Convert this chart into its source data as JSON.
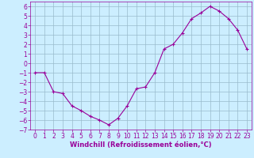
{
  "x": [
    0,
    1,
    2,
    3,
    4,
    5,
    6,
    7,
    8,
    9,
    10,
    11,
    12,
    13,
    14,
    15,
    16,
    17,
    18,
    19,
    20,
    21,
    22,
    23
  ],
  "y": [
    -1.0,
    -1.0,
    -3.0,
    -3.2,
    -4.5,
    -5.0,
    -5.6,
    -6.0,
    -6.5,
    -5.8,
    -4.5,
    -2.7,
    -2.5,
    -1.0,
    1.5,
    2.0,
    3.2,
    4.7,
    5.3,
    6.0,
    5.5,
    4.7,
    3.5,
    1.5
  ],
  "line_color": "#990099",
  "marker": "+",
  "marker_size": 3,
  "bg_color": "#cceeff",
  "grid_color": "#99bbcc",
  "xlabel": "Windchill (Refroidissement éolien,°C)",
  "xlabel_color": "#990099",
  "tick_color": "#990099",
  "ylim": [
    -7,
    6.5
  ],
  "xlim": [
    -0.5,
    23.5
  ],
  "yticks": [
    -7,
    -6,
    -5,
    -4,
    -3,
    -2,
    -1,
    0,
    1,
    2,
    3,
    4,
    5,
    6
  ],
  "xticks": [
    0,
    1,
    2,
    3,
    4,
    5,
    6,
    7,
    8,
    9,
    10,
    11,
    12,
    13,
    14,
    15,
    16,
    17,
    18,
    19,
    20,
    21,
    22,
    23
  ],
  "tick_fontsize": 5.5,
  "xlabel_fontsize": 6.0
}
